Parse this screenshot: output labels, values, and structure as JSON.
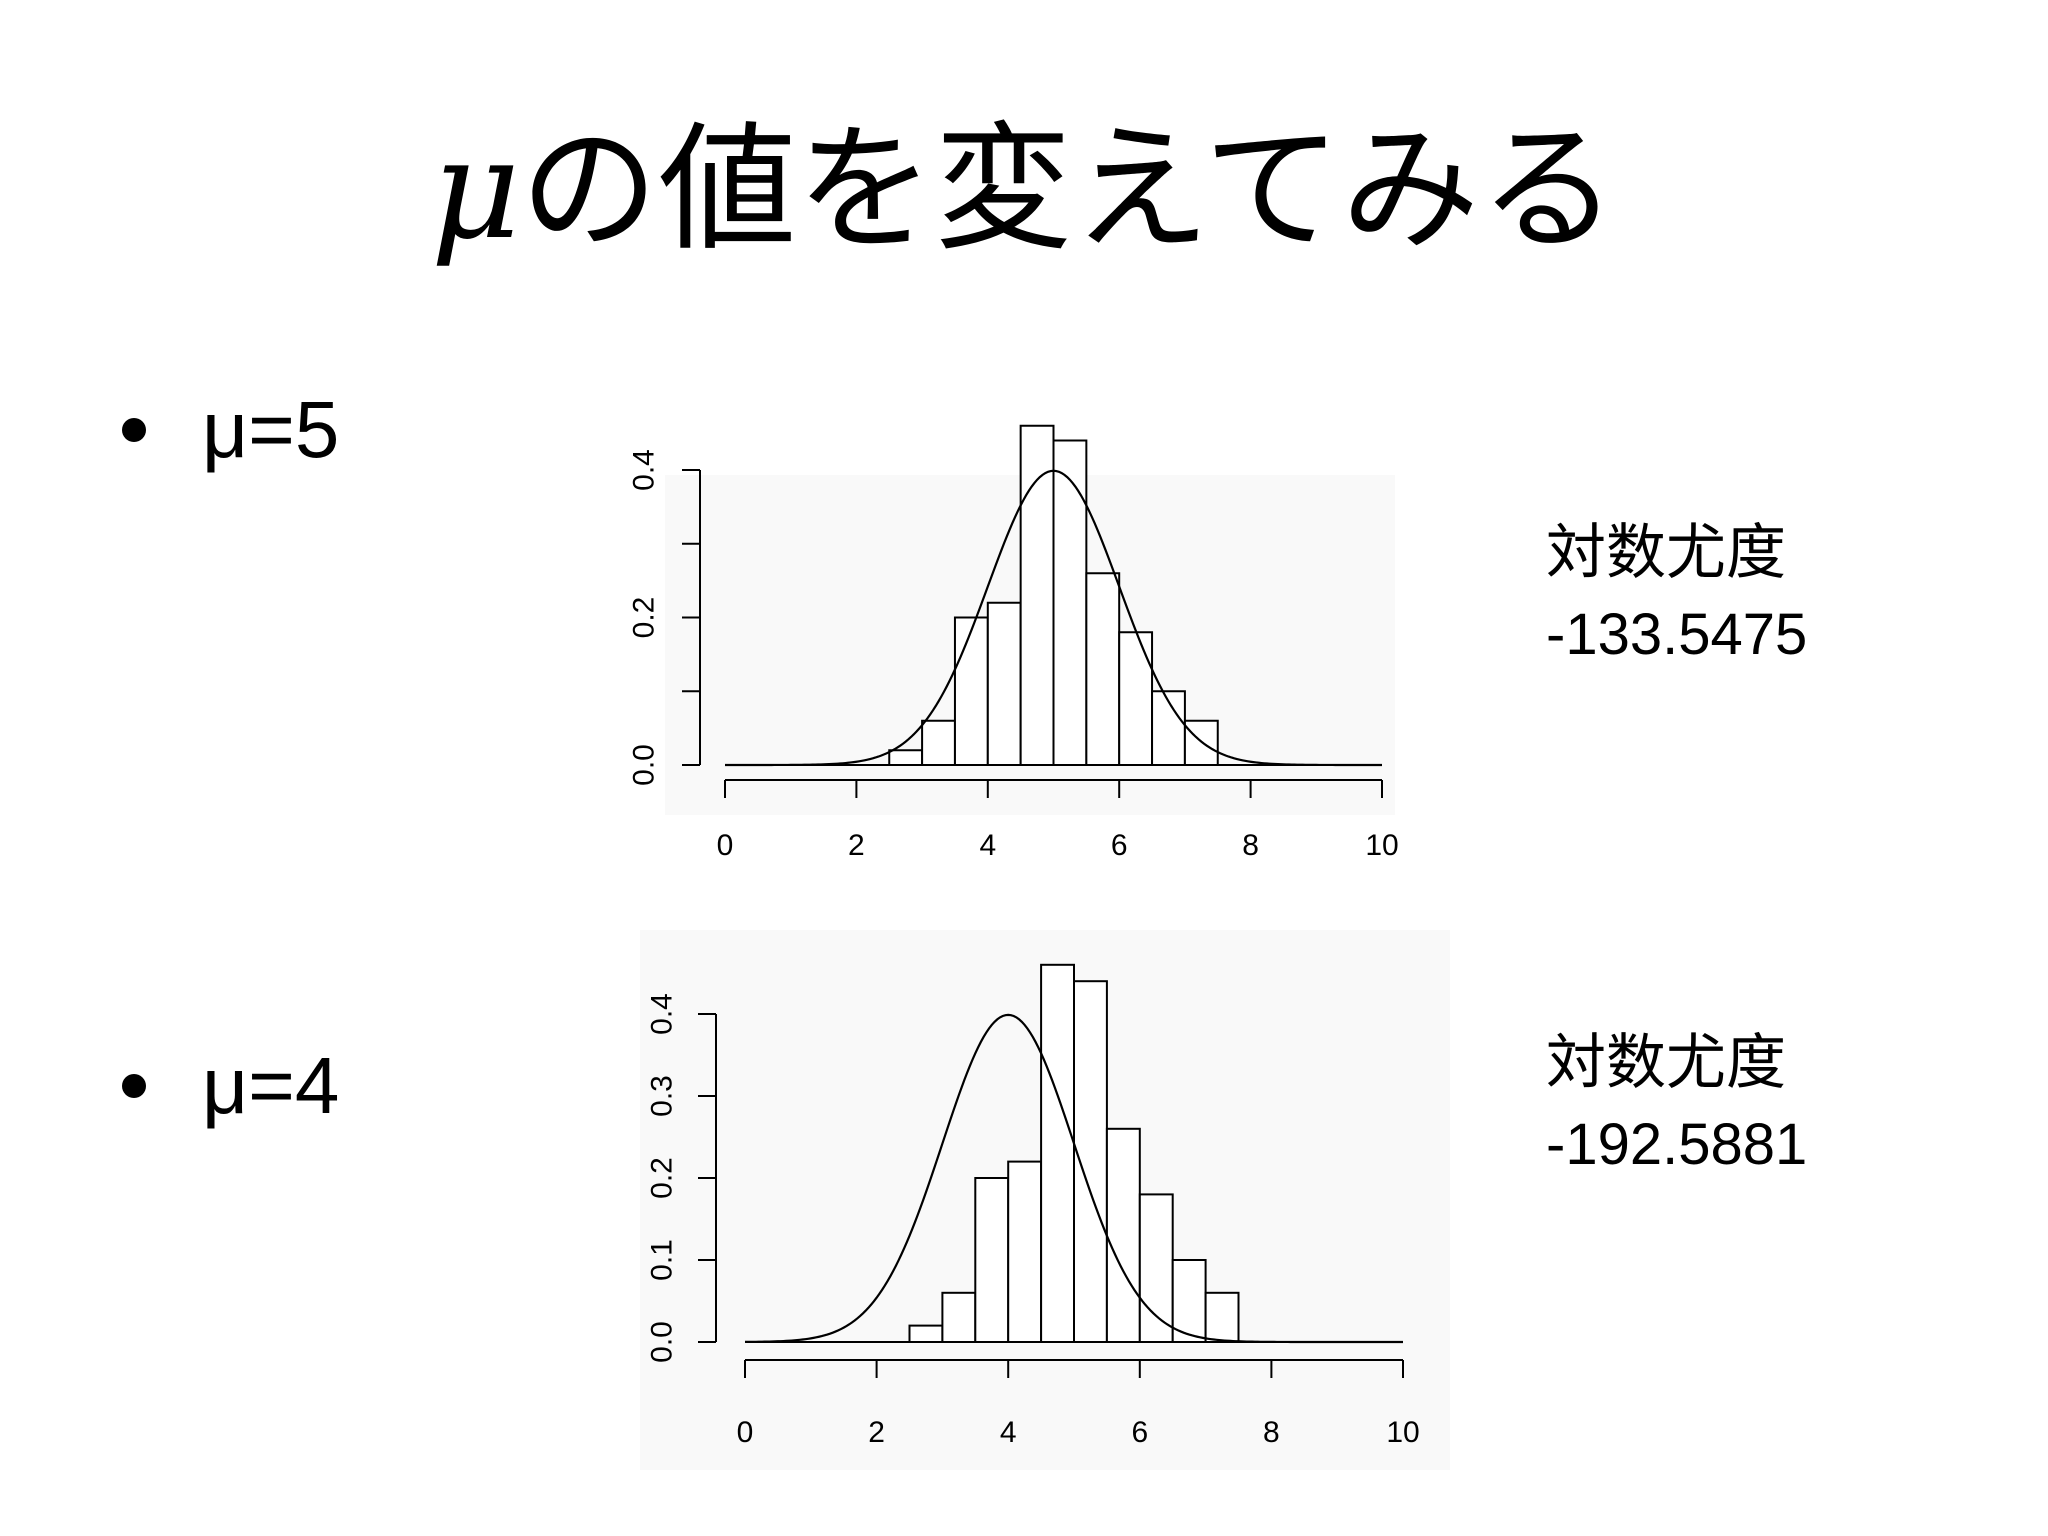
{
  "slide": {
    "title_symbol": "μ",
    "title_text": "の値を変えてみる"
  },
  "bullets": [
    {
      "label": "μ=5"
    },
    {
      "label": "μ=4"
    }
  ],
  "results": [
    {
      "heading": "対数尤度",
      "value": "-133.5475"
    },
    {
      "heading": "対数尤度",
      "value": "-192.5881"
    }
  ],
  "colors": {
    "background": "#ffffff",
    "plot_background": "#f9f9f9",
    "ink": "#000000",
    "bar_fill": "#ffffff"
  },
  "chart_data": [
    {
      "type": "bar",
      "overlay": "line",
      "description_of_overlay": "normal density curve, mean 5, sd 1",
      "curve_mean": 5,
      "curve_sd": 1,
      "bin_edges": [
        2.5,
        3.0,
        3.5,
        4.0,
        4.5,
        5.0,
        5.5,
        6.0,
        6.5,
        7.0,
        7.5
      ],
      "values": [
        0.02,
        0.06,
        0.2,
        0.22,
        0.46,
        0.44,
        0.26,
        0.18,
        0.1,
        0.06
      ],
      "xlim": [
        0,
        10
      ],
      "ylim": [
        0,
        0.4
      ],
      "x_ticks": [
        "0",
        "2",
        "4",
        "6",
        "8",
        "10"
      ],
      "y_ticks": [
        "0.0",
        "0.2",
        "0.4"
      ],
      "y_minor_step": 0.1,
      "title": "",
      "xlabel": "",
      "ylabel": "",
      "grid": false
    },
    {
      "type": "bar",
      "overlay": "line",
      "description_of_overlay": "normal density curve, mean 4, sd 1",
      "curve_mean": 4,
      "curve_sd": 1,
      "bin_edges": [
        2.5,
        3.0,
        3.5,
        4.0,
        4.5,
        5.0,
        5.5,
        6.0,
        6.5,
        7.0,
        7.5
      ],
      "values": [
        0.02,
        0.06,
        0.2,
        0.22,
        0.46,
        0.44,
        0.26,
        0.18,
        0.1,
        0.06
      ],
      "xlim": [
        0,
        10
      ],
      "ylim": [
        0,
        0.4
      ],
      "x_ticks": [
        "0",
        "2",
        "4",
        "6",
        "8",
        "10"
      ],
      "y_ticks": [
        "0.0",
        "0.1",
        "0.2",
        "0.3",
        "0.4"
      ],
      "y_minor_step": 0.1,
      "title": "",
      "xlabel": "",
      "ylabel": "",
      "grid": false
    }
  ]
}
